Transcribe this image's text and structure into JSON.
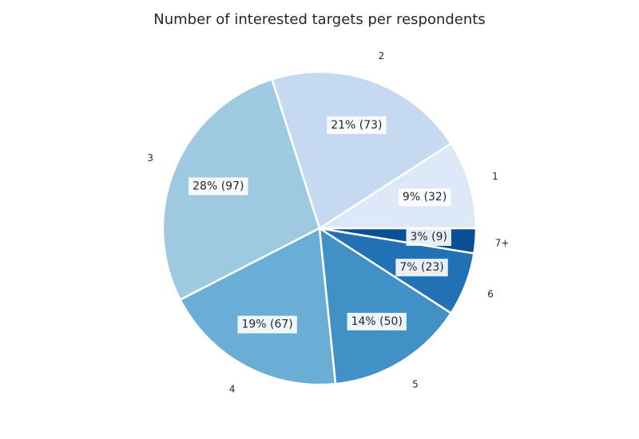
{
  "chart_data": {
    "type": "pie",
    "title": "Number of interested targets per respondents",
    "categories": [
      "1",
      "2",
      "3",
      "4",
      "5",
      "6",
      "7+"
    ],
    "values": [
      32,
      73,
      97,
      67,
      50,
      23,
      9
    ],
    "labels": [
      "9% (32)",
      "21% (73)",
      "28% (97)",
      "19% (67)",
      "14% (50)",
      "7% (23)",
      "3% (9)"
    ],
    "colors": [
      "#dce8f6",
      "#c5daf0",
      "#9ecae1",
      "#6aaed6",
      "#4191c6",
      "#2171b5",
      "#0b4f96"
    ],
    "start_angle_deg": 0,
    "direction": "counterclockwise"
  }
}
